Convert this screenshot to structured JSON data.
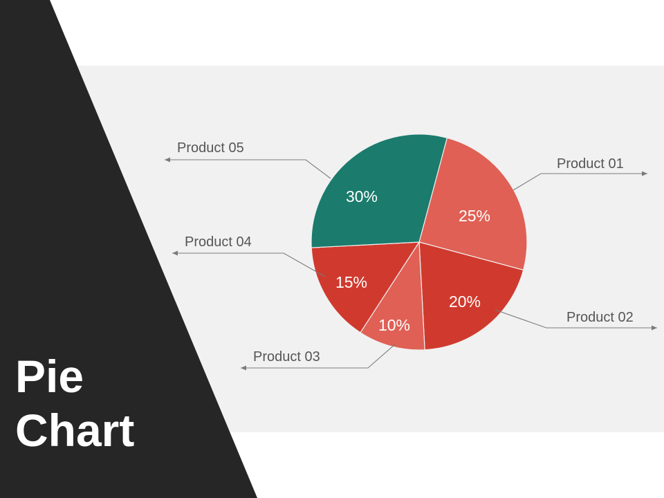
{
  "title": {
    "line1": "Pie",
    "line2": "Chart"
  },
  "colors": {
    "dark_wedge": "#262626",
    "panel": "#f1f1f1",
    "teal": "#1b7b6d",
    "salmon": "#e06055",
    "red": "#d03a2e"
  },
  "chart_data": {
    "type": "pie",
    "title": "",
    "categories": [
      "Product 01",
      "Product 02",
      "Product 03",
      "Product 04",
      "Product 05"
    ],
    "values": [
      25,
      20,
      10,
      15,
      30
    ],
    "value_labels": [
      "25%",
      "20%",
      "10%",
      "15%",
      "30%"
    ],
    "slice_colors": [
      "#e06055",
      "#d03a2e",
      "#e06055",
      "#d03a2e",
      "#1b7b6d"
    ],
    "legend": "callout labels with arrows"
  }
}
